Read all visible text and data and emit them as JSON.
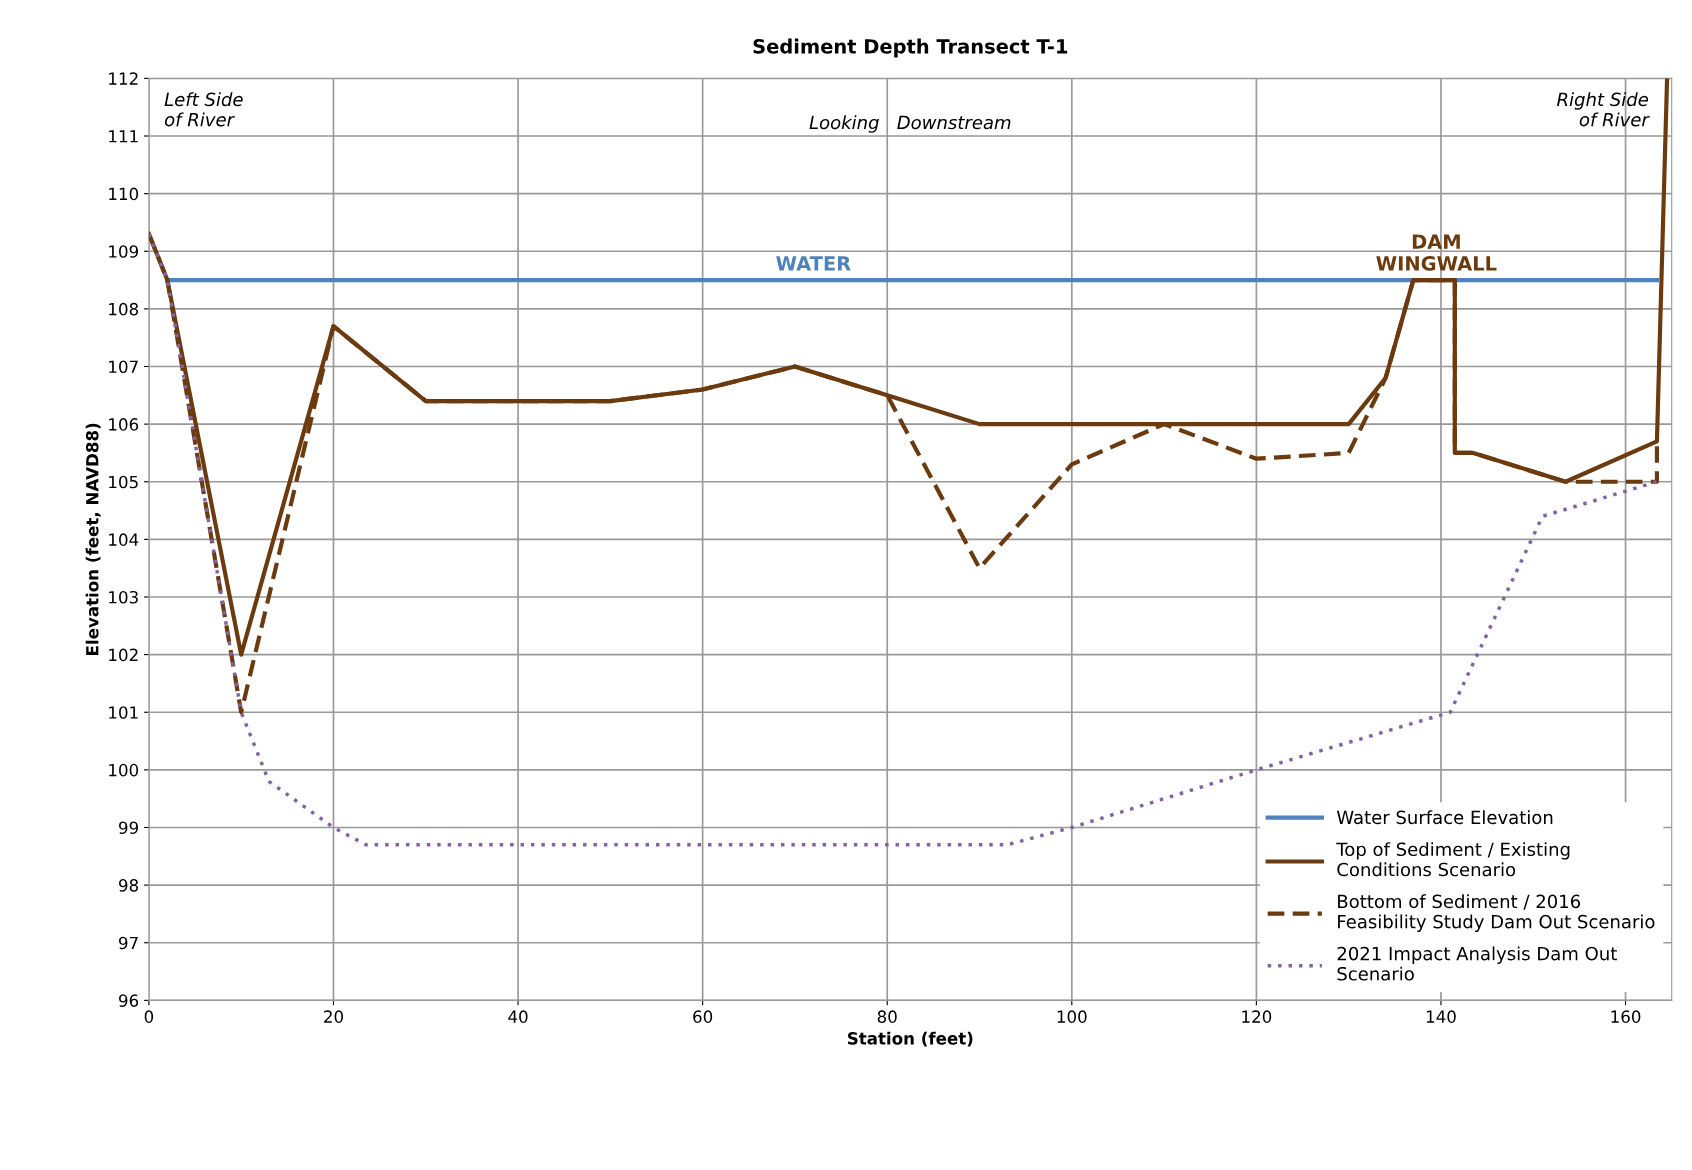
{
  "chart_data": {
    "type": "line",
    "title": "Sediment Depth Transect T-1",
    "xlabel": "Station (feet)",
    "ylabel": "Elevation (feet, NAVD88)",
    "xlim": [
      0,
      165
    ],
    "xticks": [
      0,
      20,
      40,
      60,
      80,
      100,
      120,
      140,
      160
    ],
    "ylim": [
      96,
      112
    ],
    "yticks": [
      96,
      97,
      98,
      99,
      100,
      101,
      102,
      103,
      104,
      105,
      106,
      107,
      108,
      109,
      110,
      111,
      112
    ],
    "grid": true,
    "legend": "bottom right",
    "series": [
      {
        "name": "Water Surface Elevation",
        "color": "#4f81bd",
        "line_style": "solid",
        "x": [
          2,
          163.4
        ],
        "values": [
          108.5,
          108.5
        ]
      },
      {
        "name": "Top of Sediment / Existing Conditions Scenario",
        "color": "#6b3a0e",
        "line_style": "solid",
        "x": [
          0,
          2,
          10,
          20,
          30,
          50,
          60,
          70,
          80,
          90,
          130,
          134,
          137,
          141.5,
          141.5,
          143.5,
          153.5,
          163.4,
          164.5
        ],
        "values": [
          109.3,
          108.5,
          102,
          107.7,
          106.4,
          106.4,
          106.6,
          107,
          106.5,
          106,
          106,
          106.8,
          108.5,
          108.5,
          105.5,
          105.5,
          105,
          105.7,
          112
        ]
      },
      {
        "name": "Bottom of Sediment / 2016 Feasibility Study Dam Out Scenario",
        "color": "#6b3a0e",
        "line_style": "dashed",
        "x": [
          0,
          2,
          10,
          20,
          30,
          50,
          60,
          70,
          80,
          90,
          100,
          110,
          120,
          130,
          134,
          137,
          141.5,
          141.5,
          143.5,
          153.5,
          163.4,
          163.4
        ],
        "values": [
          109.3,
          108.5,
          101,
          107.7,
          106.4,
          106.4,
          106.6,
          107,
          106.5,
          103.5,
          105.3,
          106,
          105.4,
          105.5,
          106.8,
          108.5,
          108.5,
          105.5,
          105.5,
          105,
          105,
          105.7
        ]
      },
      {
        "name": "2021 Impact Analysis Dam Out Scenario",
        "color": "#8064a2",
        "line_style": "dotted",
        "x": [
          0,
          2,
          10,
          13,
          20,
          23.5,
          93,
          100,
          120,
          141,
          151,
          163.4
        ],
        "values": [
          109.3,
          108.5,
          101,
          99.8,
          99,
          98.7,
          98.7,
          99,
          100,
          101,
          104.4,
          105
        ]
      }
    ],
    "annotations": [
      "Left Side\nof River",
      "Looking   Downstream",
      "Right Side\nof River",
      {
        "text": "WATER",
        "x": 72,
        "y": 108.5
      },
      {
        "text": "DAM\nWINGWALL",
        "x": 139.5,
        "y": 108.5
      }
    ]
  }
}
